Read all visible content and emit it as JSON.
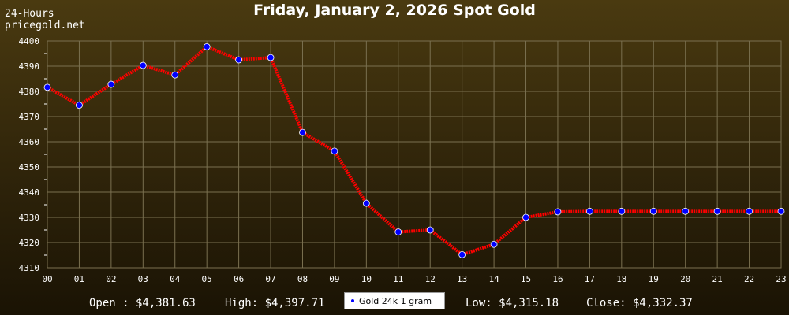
{
  "header": {
    "title": "Friday, January 2, 2026 Spot Gold",
    "period": "24-Hours",
    "site": "pricegold.net"
  },
  "footer": {
    "open": "Open : $4,381.63",
    "high": "High: $4,397.71",
    "low": "Low: $4,315.18",
    "close": "Close: $4,332.37"
  },
  "colors": {
    "line": "#ff0000",
    "marker": "#0000ff",
    "grid": "#7a7050",
    "axis_text": "#ffffff"
  },
  "chart_data": {
    "type": "line",
    "title": "Friday, January 2, 2026 Spot Gold",
    "x": [
      "00",
      "01",
      "02",
      "03",
      "04",
      "05",
      "06",
      "07",
      "08",
      "09",
      "10",
      "11",
      "12",
      "13",
      "14",
      "15",
      "16",
      "17",
      "18",
      "19",
      "20",
      "21",
      "22",
      "23"
    ],
    "series": [
      {
        "name": "Gold 24k 1 gram",
        "values": [
          4381.6,
          4374.5,
          4382.8,
          4390.3,
          4386.5,
          4397.7,
          4392.5,
          4393.4,
          4363.7,
          4356.3,
          4335.6,
          4324.2,
          4325.0,
          4315.2,
          4319.3,
          4330.0,
          4332.2,
          4332.4,
          4332.4,
          4332.4,
          4332.4,
          4332.4,
          4332.4,
          4332.4
        ]
      }
    ],
    "ylim": [
      4310,
      4400
    ],
    "yticks": [
      4310,
      4320,
      4330,
      4340,
      4350,
      4360,
      4370,
      4380,
      4390,
      4400
    ],
    "grid": true,
    "legend_position": "bottom-center"
  }
}
